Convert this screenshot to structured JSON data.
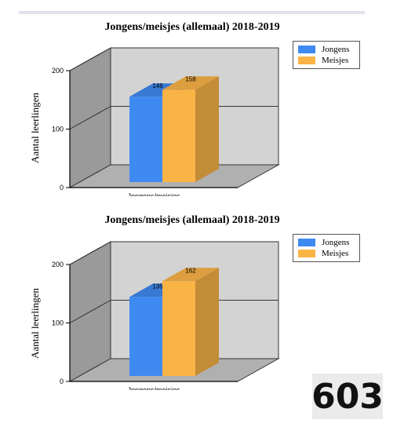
{
  "colors": {
    "jongens": "#3f8af0",
    "meisjes": "#fab446"
  },
  "badge": "603",
  "chart_data": [
    {
      "type": "bar",
      "title": "Jongens/meisjes (allemaal) 2018-2019",
      "categories": [
        "Jongens/meisjes"
      ],
      "ylabel": "Aantal leerlingen",
      "ylim": [
        0,
        200
      ],
      "yticks": [
        "0",
        "100",
        "200"
      ],
      "legend": "top-right",
      "grid": true,
      "series": [
        {
          "name": "Jongens",
          "values": [
            146
          ],
          "value_labels": [
            "146"
          ]
        },
        {
          "name": "Meisjes",
          "values": [
            158
          ],
          "value_labels": [
            "158"
          ]
        }
      ]
    },
    {
      "type": "bar",
      "title": "Jongens/meisjes (allemaal) 2018-2019",
      "categories": [
        "Jongens/meisjes"
      ],
      "ylabel": "Aantal leerlingen",
      "ylim": [
        0,
        200
      ],
      "yticks": [
        "0",
        "100",
        "200"
      ],
      "legend": "top-right",
      "grid": true,
      "series": [
        {
          "name": "Jongens",
          "values": [
            135
          ],
          "value_labels": [
            "135"
          ]
        },
        {
          "name": "Meisjes",
          "values": [
            162
          ],
          "value_labels": [
            "162"
          ]
        }
      ]
    }
  ]
}
